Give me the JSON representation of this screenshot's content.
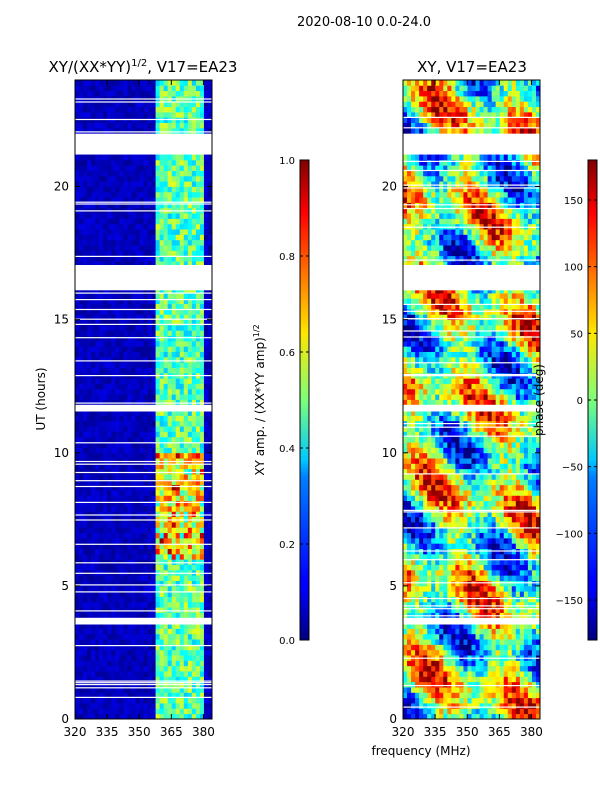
{
  "suptitle": "2020-08-10 0.0-24.0",
  "chart_data": [
    {
      "type": "heatmap",
      "title": "XY/(XX*YY)$^{1/2}$, V17=EA23",
      "title_main": "XY/(XX*YY)",
      "title_sup": "1/2",
      "title_tail": ", V17=EA23",
      "xlabel": "",
      "ylabel": "UT (hours)",
      "xlim": [
        320,
        384
      ],
      "ylim": [
        0,
        24
      ],
      "xticks": [
        320,
        335,
        350,
        365,
        380
      ],
      "yticks": [
        0,
        5,
        10,
        15,
        20
      ],
      "gaps_hours": [
        [
          21.25,
          21.95
        ],
        [
          16.1,
          17.05
        ],
        [
          11.55,
          11.8
        ],
        [
          3.55,
          3.8
        ]
      ],
      "colorbar": {
        "label_main": "XY amp. / (XX*YY amp)",
        "label_sup": "1/2",
        "range": [
          0.0,
          1.0
        ],
        "ticks": [
          "0.0",
          "0.2",
          "0.4",
          "0.6",
          "0.8",
          "1.0"
        ],
        "tick_values": [
          0.0,
          0.2,
          0.4,
          0.6,
          0.8,
          1.0
        ],
        "colormap": "jet"
      }
    },
    {
      "type": "heatmap",
      "title": "XY, V17=EA23",
      "xlabel": "frequency (MHz)",
      "ylabel": "",
      "xlim": [
        320,
        384
      ],
      "ylim": [
        0,
        24
      ],
      "xticks": [
        320,
        335,
        350,
        365,
        380
      ],
      "yticks": [
        0,
        5,
        10,
        15,
        20
      ],
      "gaps_hours": [
        [
          21.25,
          21.95
        ],
        [
          16.1,
          17.05
        ],
        [
          11.55,
          11.8
        ],
        [
          3.55,
          3.8
        ]
      ],
      "colorbar": {
        "label": "phase (deg)",
        "range": [
          -180,
          180
        ],
        "ticks": [
          "150",
          "100",
          "50",
          "0",
          "−50",
          "−100",
          "−150"
        ],
        "tick_values": [
          150,
          100,
          50,
          0,
          -50,
          -100,
          -150
        ],
        "colormap": "jet"
      }
    }
  ]
}
